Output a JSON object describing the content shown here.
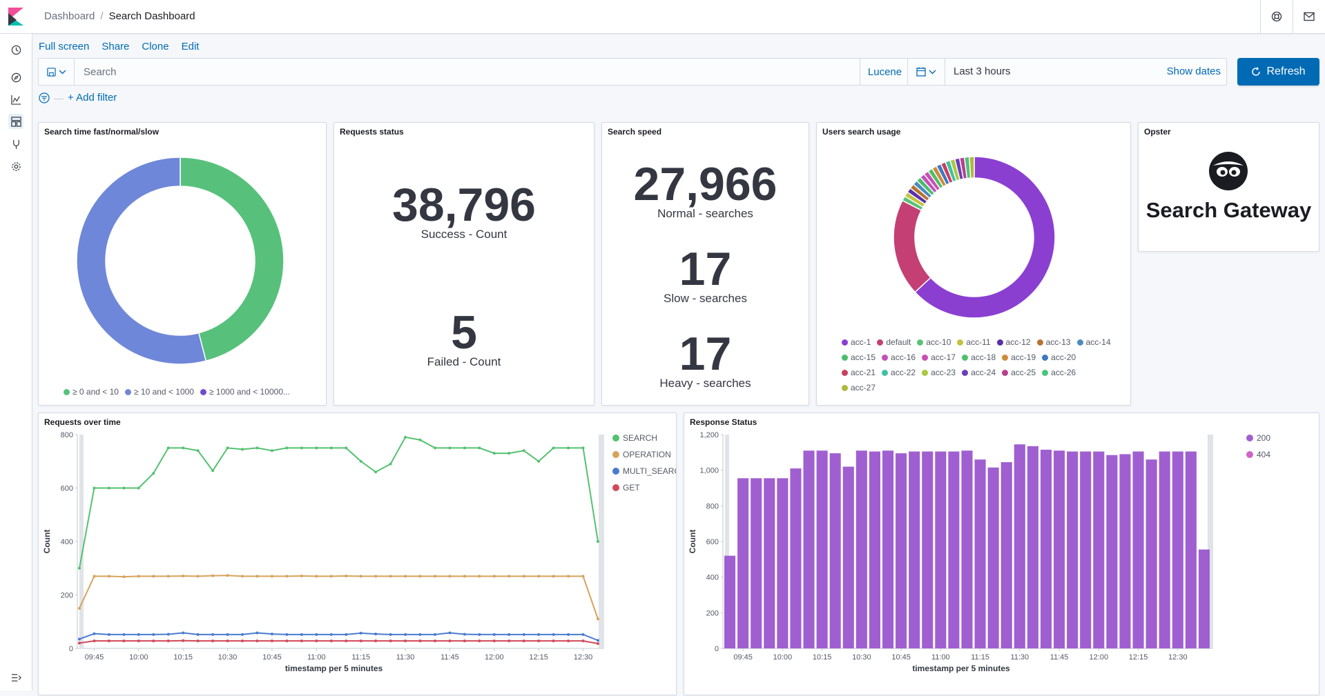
{
  "header": {
    "breadcrumb_parent": "Dashboard",
    "breadcrumb_current": "Search Dashboard"
  },
  "top_menu": {
    "full_screen": "Full screen",
    "share": "Share",
    "clone": "Clone",
    "edit": "Edit"
  },
  "query_bar": {
    "placeholder": "Search",
    "language": "Lucene"
  },
  "date_picker": {
    "range": "Last 3 hours",
    "show_dates": "Show dates"
  },
  "refresh_button": "Refresh",
  "filter": {
    "add_filter": "+ Add filter"
  },
  "panels": {
    "search_time": {
      "title": "Search time fast/normal/slow",
      "legend": [
        "≥ 0 and < 10",
        "≥ 10 and < 1000",
        "≥ 1000 and < 10000..."
      ]
    },
    "requests_status": {
      "title": "Requests status",
      "success_value": "38,796",
      "success_label": "Success - Count",
      "failed_value": "5",
      "failed_label": "Failed - Count"
    },
    "search_speed": {
      "title": "Search speed",
      "normal_value": "27,966",
      "normal_label": "Normal - searches",
      "slow_value": "17",
      "slow_label": "Slow - searches",
      "heavy_value": "17",
      "heavy_label": "Heavy - searches"
    },
    "users_search_usage": {
      "title": "Users search usage",
      "legend": [
        "acc-1",
        "default",
        "acc-10",
        "acc-11",
        "acc-12",
        "acc-13",
        "acc-14",
        "acc-15",
        "acc-16",
        "acc-17",
        "acc-18",
        "acc-19",
        "acc-20",
        "acc-21",
        "acc-22",
        "acc-23",
        "acc-24",
        "acc-25",
        "acc-26",
        "acc-27"
      ]
    },
    "opster": {
      "title": "Opster",
      "logo_text": "Search Gateway"
    },
    "requests_over_time": {
      "title": "Requests over time"
    },
    "response_status": {
      "title": "Response Status"
    }
  },
  "colors": {
    "green": "#54b399",
    "blue": "#6092c0",
    "purple": "#9170b8",
    "accent": "#006bb4",
    "search_line": "#54c170",
    "operation_line": "#d6a35c",
    "multi_search_line": "#4a7bd0",
    "get_line": "#d1495b",
    "bar_purple": "#a05fd0"
  },
  "chart_data": [
    {
      "type": "pie",
      "title": "Search time fast/normal/slow",
      "categories": [
        "≥ 0 and < 10",
        "≥ 10 and < 1000",
        "≥ 1000 and < 10000..."
      ],
      "values": [
        46,
        54,
        0
      ],
      "colors": [
        "#57c17b",
        "#6f87d8",
        "#6e4bd1"
      ]
    },
    {
      "type": "pie",
      "title": "Users search usage",
      "categories": [
        "acc-1",
        "default",
        "acc-10",
        "acc-11",
        "acc-12",
        "acc-13",
        "acc-14",
        "acc-15",
        "acc-16",
        "acc-17",
        "acc-18",
        "acc-19",
        "acc-20",
        "acc-21",
        "acc-22",
        "acc-23",
        "acc-24",
        "acc-25",
        "acc-26",
        "acc-27"
      ],
      "values": [
        65,
        20,
        1,
        1,
        1,
        1,
        1,
        1,
        1,
        1,
        1,
        1,
        1,
        1,
        1,
        1,
        1,
        1,
        1,
        1
      ],
      "colors": [
        "#8a3fd1",
        "#c43f74",
        "#5ac17a",
        "#c3c23e",
        "#5a31a8",
        "#b87333",
        "#4b8bbf",
        "#4bbd6b",
        "#c052b8",
        "#c94fb3",
        "#4fbf69",
        "#cf8a3a",
        "#3f78c0",
        "#c9405f",
        "#3fc0a4",
        "#a9c93f",
        "#6a3fb8",
        "#b8408e",
        "#4bc47a",
        "#b0b83f"
      ]
    },
    {
      "type": "line",
      "title": "Requests over time",
      "xlabel": "timestamp per 5 minutes",
      "ylabel": "Count",
      "ylim": [
        0,
        800
      ],
      "yticks": [
        0,
        200,
        400,
        600,
        800
      ],
      "xticks": [
        "09:45",
        "10:00",
        "10:15",
        "10:30",
        "10:45",
        "11:00",
        "11:15",
        "11:30",
        "11:45",
        "12:00",
        "12:15",
        "12:30"
      ],
      "legend_position": "right",
      "series": [
        {
          "name": "SEARCH",
          "color": "#54c170",
          "values": [
            300,
            600,
            600,
            600,
            600,
            655,
            750,
            750,
            740,
            665,
            750,
            745,
            750,
            740,
            750,
            750,
            750,
            750,
            750,
            700,
            660,
            690,
            790,
            780,
            750,
            750,
            750,
            750,
            730,
            730,
            740,
            700,
            750,
            750,
            750,
            400
          ]
        },
        {
          "name": "OPERATION",
          "color": "#d6a35c",
          "values": [
            150,
            270,
            270,
            268,
            270,
            270,
            270,
            271,
            270,
            272,
            273,
            270,
            270,
            270,
            270,
            271,
            270,
            270,
            271,
            270,
            270,
            270,
            270,
            270,
            270,
            270,
            270,
            270,
            270,
            270,
            270,
            270,
            270,
            270,
            270,
            110
          ]
        },
        {
          "name": "MULTI_SEARCH",
          "color": "#4a7bd0",
          "values": [
            35,
            55,
            52,
            52,
            52,
            52,
            53,
            58,
            52,
            52,
            52,
            52,
            58,
            54,
            52,
            52,
            52,
            52,
            52,
            57,
            54,
            52,
            52,
            52,
            52,
            58,
            53,
            52,
            52,
            52,
            52,
            52,
            52,
            52,
            52,
            30
          ]
        },
        {
          "name": "GET",
          "color": "#d1495b",
          "values": [
            20,
            28,
            28,
            28,
            28,
            28,
            28,
            29,
            28,
            28,
            28,
            28,
            28,
            28,
            28,
            28,
            28,
            28,
            28,
            28,
            28,
            28,
            28,
            28,
            28,
            28,
            28,
            28,
            28,
            28,
            28,
            28,
            28,
            28,
            28,
            18
          ]
        }
      ]
    },
    {
      "type": "bar",
      "title": "Response Status",
      "xlabel": "timestamp per 5 minutes",
      "ylabel": "Count",
      "ylim": [
        0,
        1200
      ],
      "yticks": [
        0,
        200,
        400,
        600,
        800,
        "1,000",
        "1,200"
      ],
      "xticks": [
        "09:45",
        "10:00",
        "10:15",
        "10:30",
        "10:45",
        "11:00",
        "11:15",
        "11:30",
        "11:45",
        "12:00",
        "12:15",
        "12:30"
      ],
      "legend_position": "right",
      "series": [
        {
          "name": "200",
          "color": "#a05fd0",
          "values": [
            520,
            955,
            955,
            955,
            955,
            1010,
            1110,
            1110,
            1095,
            1020,
            1110,
            1105,
            1110,
            1095,
            1105,
            1105,
            1105,
            1105,
            1110,
            1060,
            1015,
            1045,
            1145,
            1135,
            1115,
            1110,
            1105,
            1105,
            1105,
            1085,
            1090,
            1105,
            1060,
            1105,
            1105,
            1105,
            555
          ]
        },
        {
          "name": "404",
          "color": "#d162c9",
          "values": [
            0,
            0,
            0,
            0,
            0,
            0,
            0,
            0,
            0,
            0,
            0,
            0,
            0,
            0,
            0,
            0,
            0,
            0,
            0,
            0,
            0,
            0,
            0,
            0,
            0,
            0,
            0,
            0,
            0,
            0,
            0,
            0,
            0,
            0,
            0,
            0,
            0
          ]
        }
      ]
    }
  ]
}
